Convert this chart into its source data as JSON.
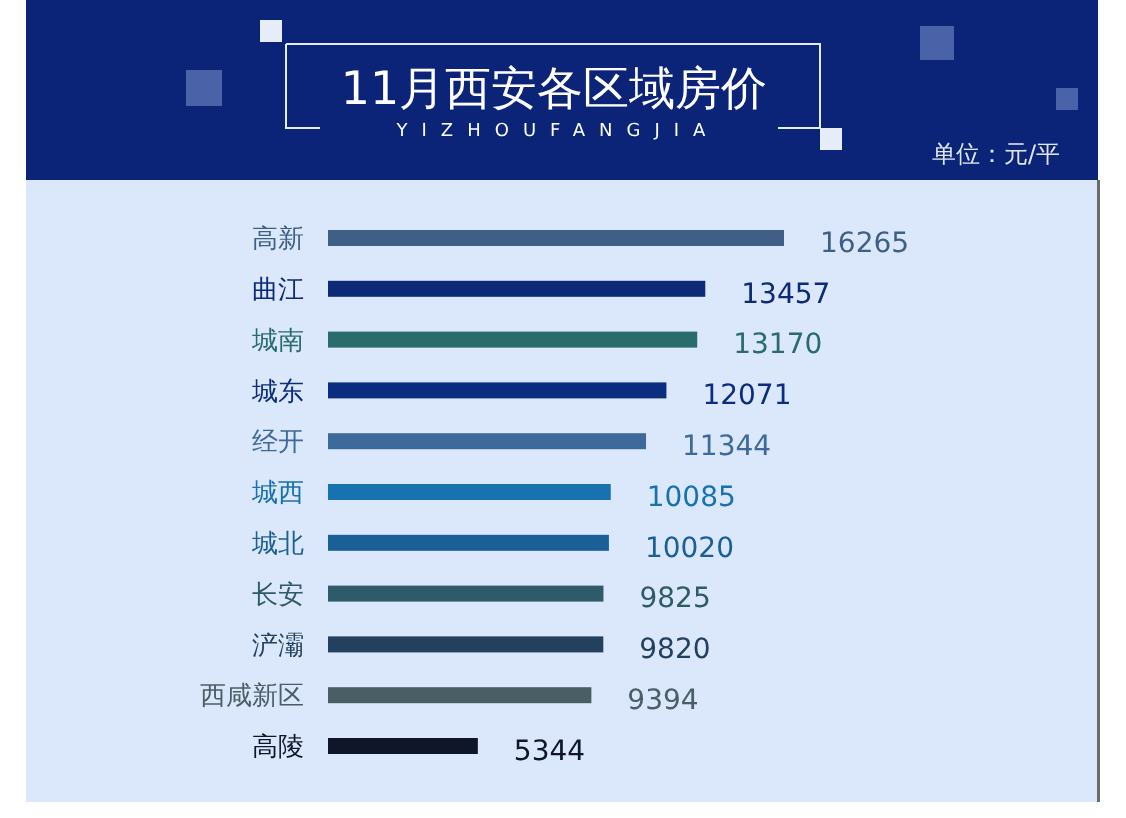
{
  "chart_data": {
    "type": "bar",
    "orientation": "horizontal",
    "title": "11月西安各区域房价",
    "subtitle": "YIZHOUFANGJIA",
    "annotations": [
      "单位：元/平"
    ],
    "categories": [
      "高新",
      "曲江",
      "城南",
      "城东",
      "经开",
      "城西",
      "城北",
      "长安",
      "浐灞",
      "西咸新区",
      "高陵"
    ],
    "values": [
      16265,
      13457,
      13170,
      12071,
      11344,
      10085,
      10020,
      9825,
      9820,
      9394,
      5344
    ],
    "colors": [
      "#3f5f86",
      "#0c2a78",
      "#2a6b6c",
      "#0c2c80",
      "#3d6a9a",
      "#1872b0",
      "#1a5f96",
      "#2e5a6a",
      "#23405e",
      "#4a5e66",
      "#10162a"
    ],
    "data_labels": true
  }
}
